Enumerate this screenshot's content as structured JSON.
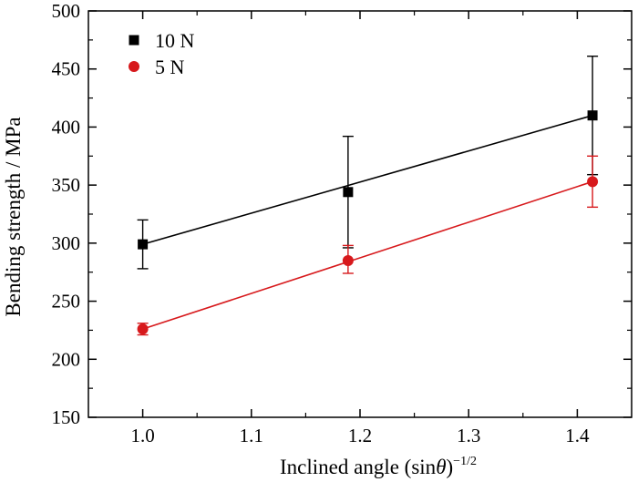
{
  "chart_data": {
    "type": "scatter",
    "xlabel_main": "Inclined angle (sin",
    "xlabel_theta": "θ",
    "xlabel_close": ")",
    "xlabel_sup": "−1/2",
    "ylabel": "Bending strength / MPa",
    "xlim": [
      0.95,
      1.45
    ],
    "ylim": [
      150,
      500
    ],
    "xticks": [
      1.0,
      1.1,
      1.2,
      1.3,
      1.4
    ],
    "xtick_labels": [
      "1.0",
      "1.1",
      "1.2",
      "1.3",
      "1.4"
    ],
    "yticks": [
      150,
      200,
      250,
      300,
      350,
      400,
      450,
      500
    ],
    "ytick_labels": [
      "150",
      "200",
      "250",
      "300",
      "350",
      "400",
      "450",
      "500"
    ],
    "grid": false,
    "legend_position": "top-left",
    "series": [
      {
        "name": "10 N",
        "marker": "square",
        "color": "#000000",
        "x": [
          1.0,
          1.189,
          1.414
        ],
        "y": [
          299,
          344,
          410
        ],
        "err_upper": [
          320,
          392,
          461
        ],
        "err_lower": [
          278,
          296,
          359
        ],
        "fit": [
          [
            1.0,
            299
          ],
          [
            1.414,
            410
          ]
        ]
      },
      {
        "name": "5 N",
        "marker": "circle",
        "color": "#d7191c",
        "x": [
          1.0,
          1.189,
          1.414
        ],
        "y": [
          226,
          285,
          353
        ],
        "err_upper": [
          231,
          298,
          375
        ],
        "err_lower": [
          221,
          274,
          331
        ],
        "fit": [
          [
            1.0,
            226
          ],
          [
            1.414,
            353
          ]
        ]
      }
    ]
  }
}
